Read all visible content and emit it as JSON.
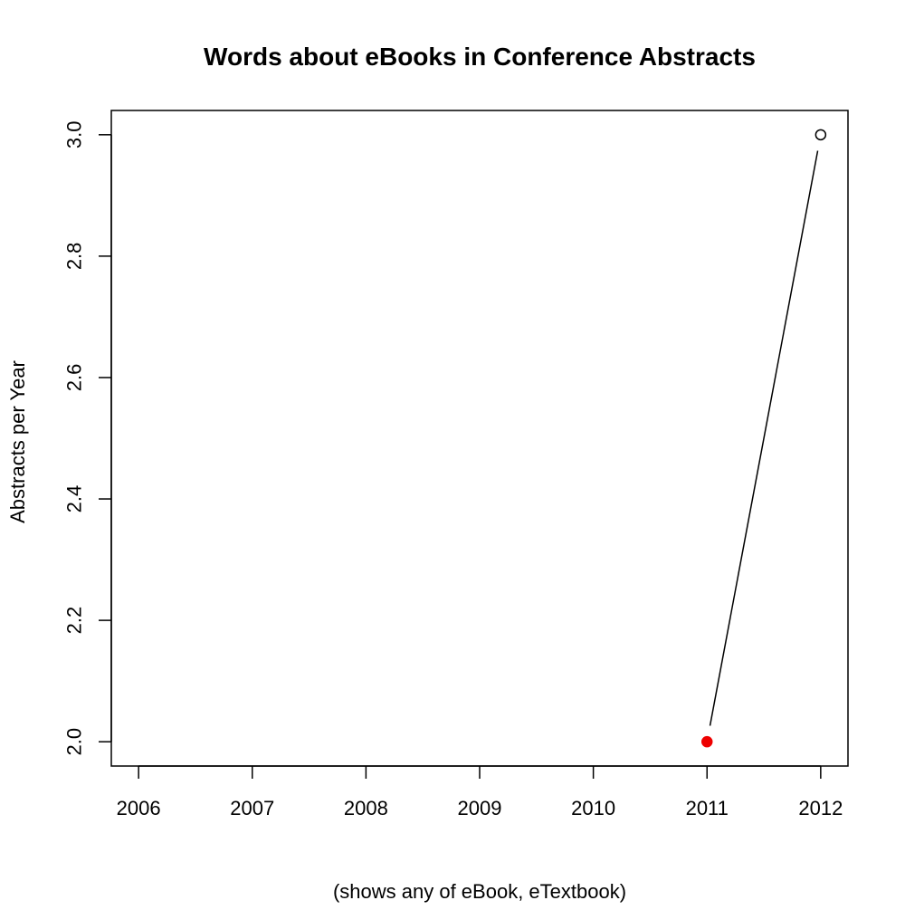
{
  "chart_data": {
    "type": "line",
    "title": "Words about eBooks in Conference Abstracts",
    "xlabel": "(shows any of eBook, eTextbook)",
    "ylabel": "Abstracts per Year",
    "x": [
      2011,
      2012
    ],
    "series": [
      {
        "values": [
          2,
          3
        ],
        "point_fill": [
          "#ee0000",
          "#ffffff"
        ],
        "point_stroke": [
          "#ee0000",
          "#000000"
        ]
      }
    ],
    "xticks": [
      2006,
      2007,
      2008,
      2009,
      2010,
      2011,
      2012
    ],
    "yticks": [
      "2.0",
      "2.2",
      "2.4",
      "2.6",
      "2.8",
      "3.0"
    ],
    "xlim": [
      2005.76,
      2012.24
    ],
    "ylim": [
      1.96,
      3.04
    ],
    "grid": false,
    "colors": {
      "highlight": "#ee0000",
      "line": "#000000"
    }
  }
}
